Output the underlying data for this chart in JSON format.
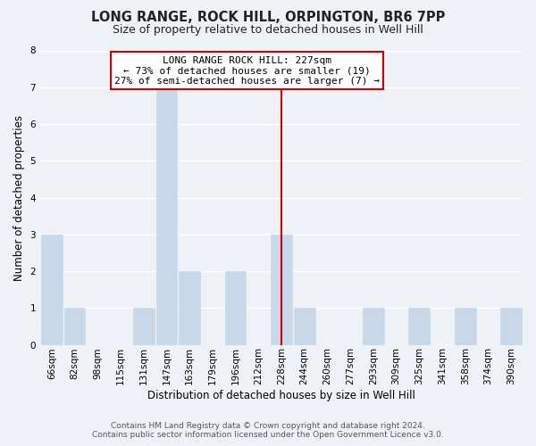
{
  "title": "LONG RANGE, ROCK HILL, ORPINGTON, BR6 7PP",
  "subtitle": "Size of property relative to detached houses in Well Hill",
  "xlabel": "Distribution of detached houses by size in Well Hill",
  "ylabel": "Number of detached properties",
  "bar_labels": [
    "66sqm",
    "82sqm",
    "98sqm",
    "115sqm",
    "131sqm",
    "147sqm",
    "163sqm",
    "179sqm",
    "196sqm",
    "212sqm",
    "228sqm",
    "244sqm",
    "260sqm",
    "277sqm",
    "293sqm",
    "309sqm",
    "325sqm",
    "341sqm",
    "358sqm",
    "374sqm",
    "390sqm"
  ],
  "bar_values": [
    3,
    1,
    0,
    0,
    1,
    7,
    2,
    0,
    2,
    0,
    3,
    1,
    0,
    0,
    1,
    0,
    1,
    0,
    1,
    0,
    1
  ],
  "bar_color": "#c8d8e8",
  "bar_edge_color": "#a0b8cc",
  "reference_line_index": 10,
  "annotation_title": "LONG RANGE ROCK HILL: 227sqm",
  "annotation_line1": "← 73% of detached houses are smaller (19)",
  "annotation_line2": "27% of semi-detached houses are larger (7) →",
  "ylim": [
    0,
    8
  ],
  "yticks": [
    0,
    1,
    2,
    3,
    4,
    5,
    6,
    7,
    8
  ],
  "footer_line1": "Contains HM Land Registry data © Crown copyright and database right 2024.",
  "footer_line2": "Contains public sector information licensed under the Open Government Licence v3.0.",
  "ref_line_color": "#cc0000",
  "annotation_box_edge_color": "#cc0000",
  "background_color": "#eef2f7",
  "grid_color": "#ffffff",
  "title_fontsize": 10.5,
  "subtitle_fontsize": 9,
  "axis_label_fontsize": 8.5,
  "tick_fontsize": 7.5,
  "annotation_fontsize": 8,
  "footer_fontsize": 6.5
}
